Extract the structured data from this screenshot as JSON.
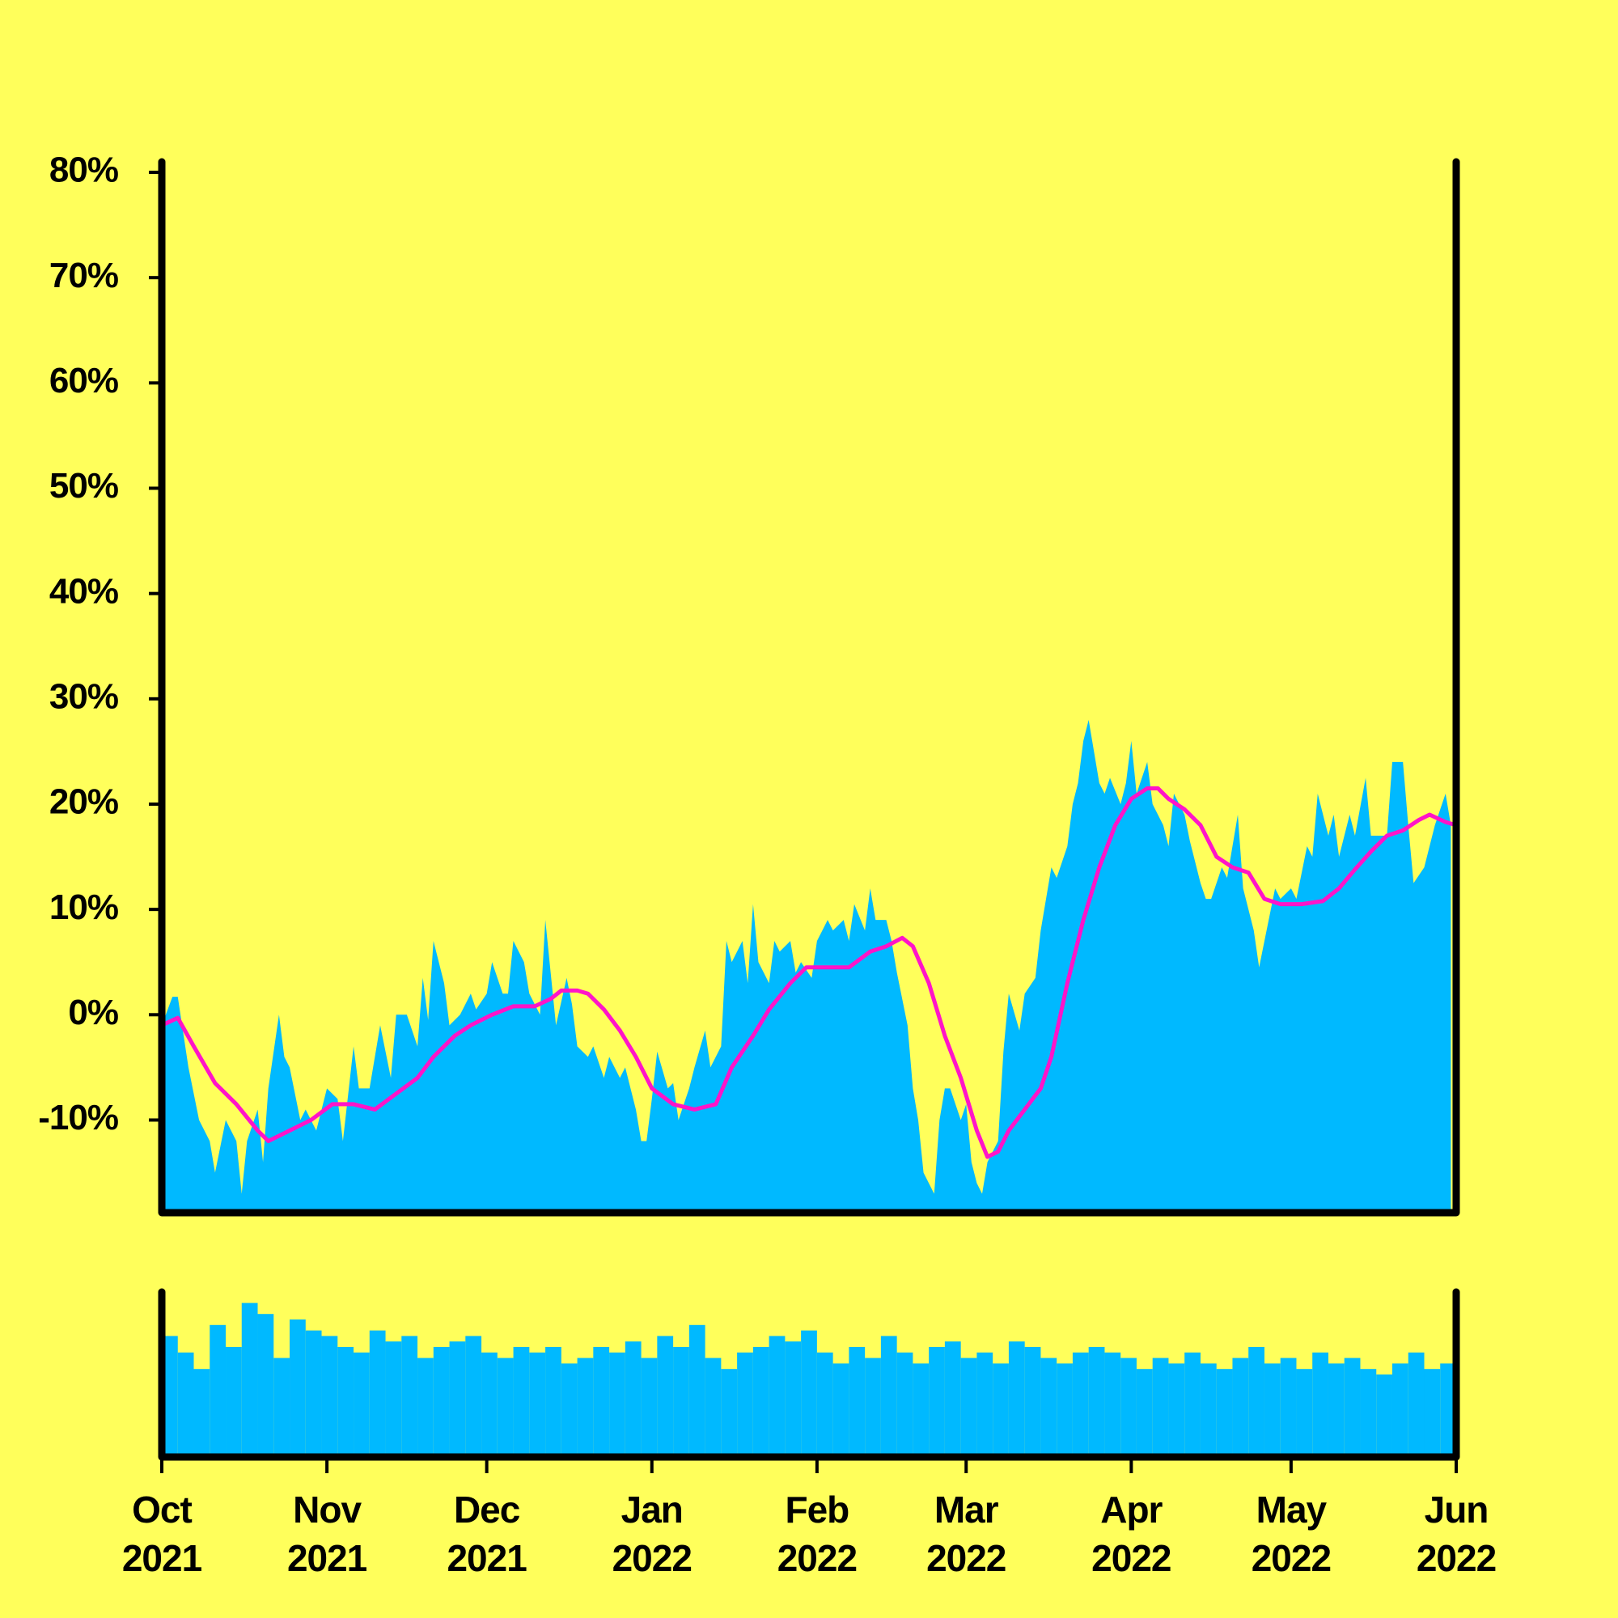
{
  "chart_data": [
    {
      "type": "area",
      "xlim": [
        0,
        243
      ],
      "ylim": [
        -18.8,
        81
      ],
      "yticks": [
        {
          "value": -10,
          "label": "-10%"
        },
        {
          "value": 0,
          "label": "0%"
        },
        {
          "value": 10,
          "label": "10%"
        },
        {
          "value": 20,
          "label": "20%"
        },
        {
          "value": 30,
          "label": "30%"
        },
        {
          "value": 40,
          "label": "40%"
        },
        {
          "value": 50,
          "label": "50%"
        },
        {
          "value": 60,
          "label": "60%"
        },
        {
          "value": 70,
          "label": "70%"
        },
        {
          "value": 80,
          "label": "80%"
        }
      ],
      "series": [
        {
          "type": "area",
          "color": "#00b9ff",
          "x": [
            0,
            2,
            3,
            5,
            7,
            9,
            10,
            12,
            14,
            15,
            16,
            18,
            19,
            20,
            22,
            23,
            24,
            26,
            27,
            29,
            31,
            33,
            34,
            36,
            37,
            39,
            40,
            41,
            43,
            44,
            46,
            48,
            49,
            50,
            51,
            53,
            54,
            56,
            58,
            59,
            61,
            62,
            64,
            65,
            66,
            68,
            69,
            71,
            72,
            73,
            74,
            76,
            77,
            78,
            80,
            81,
            83,
            84,
            86,
            87,
            89,
            90,
            91,
            92,
            93,
            95,
            96,
            97,
            99,
            100,
            102,
            103,
            105,
            106,
            107,
            109,
            110,
            111,
            112,
            114,
            115,
            116,
            118,
            119,
            120,
            122,
            123,
            125,
            126,
            128,
            129,
            130,
            132,
            133,
            134,
            136,
            137,
            138,
            140,
            141,
            142,
            143,
            145,
            146,
            147,
            148,
            150,
            151,
            152,
            153,
            154,
            155,
            157,
            158,
            159,
            161,
            162,
            164,
            165,
            167,
            168,
            170,
            171,
            172,
            173,
            174,
            176,
            177,
            178,
            180,
            181,
            182,
            183,
            185,
            186,
            188,
            189,
            190,
            192,
            193,
            195,
            196,
            197,
            199,
            200,
            202,
            203,
            205,
            206,
            207,
            209,
            210,
            212,
            213,
            215,
            216,
            217,
            219,
            220,
            221,
            223,
            224,
            226,
            227,
            229,
            230,
            231,
            233,
            234,
            235,
            237,
            239,
            241,
            242
          ],
          "values": [
            -1,
            1.7,
            1.7,
            -5,
            -10,
            -12,
            -15,
            -10,
            -12,
            -17,
            -12,
            -9,
            -14,
            -7,
            0,
            -4,
            -5,
            -10,
            -9,
            -11,
            -7,
            -8,
            -12,
            -3,
            -7,
            -7,
            -4,
            -1,
            -6,
            0,
            0,
            -3,
            3.5,
            -0.5,
            7,
            3,
            -1,
            0,
            2,
            0.5,
            2,
            5,
            2,
            2,
            7,
            5,
            2,
            0,
            9,
            4,
            -1,
            3.5,
            1,
            -3,
            -4,
            -3,
            -6,
            -4,
            -6,
            -5,
            -9,
            -12,
            -12,
            -8,
            -3.5,
            -7,
            -6.5,
            -10,
            -7,
            -5,
            -1.5,
            -5,
            -3,
            7,
            5,
            7,
            3,
            10.5,
            5,
            3,
            7,
            6,
            7,
            4,
            5,
            3.5,
            7,
            9,
            8,
            9,
            7,
            10.5,
            8,
            12,
            9,
            9,
            7,
            4,
            -1,
            -7,
            -10,
            -15,
            -17,
            -10,
            -7,
            -7,
            -10,
            -8.5,
            -14,
            -16,
            -17,
            -14,
            -12,
            -3.5,
            2,
            -1.5,
            2,
            3.5,
            8,
            14,
            13,
            16,
            20,
            22,
            26,
            28,
            22,
            21,
            22.5,
            20,
            22,
            26,
            21,
            24,
            20,
            18,
            16,
            21,
            19,
            16.5,
            12.5,
            11,
            11,
            14,
            13,
            19,
            12,
            8,
            4.5,
            7,
            12,
            11,
            12,
            11,
            16,
            15,
            21,
            17,
            19,
            15,
            19,
            17,
            22.5,
            17,
            17,
            17,
            24,
            24,
            18,
            12.5,
            14,
            18,
            21,
            18
          ]
        },
        {
          "type": "line",
          "color": "#ff14c8",
          "x": [
            0,
            3,
            6,
            10,
            14,
            18,
            20,
            24,
            28,
            32,
            36,
            40,
            44,
            48,
            51,
            55,
            58,
            62,
            66,
            70,
            73,
            75,
            78,
            80,
            83,
            86,
            89,
            92,
            96,
            100,
            104,
            107,
            111,
            114,
            118,
            121,
            125,
            129,
            133,
            136,
            139,
            141,
            144,
            147,
            150,
            153,
            155,
            157,
            159,
            162,
            165,
            167,
            170,
            173,
            176,
            179,
            182,
            185,
            187,
            189,
            192,
            195,
            198,
            201,
            204,
            207,
            210,
            214,
            218,
            221,
            224,
            227,
            230,
            233,
            236,
            238,
            241,
            243
          ],
          "values": [
            -1,
            -0.3,
            -3,
            -6.5,
            -8.5,
            -11,
            -12,
            -11,
            -10,
            -8.5,
            -8.5,
            -9,
            -7.5,
            -6,
            -4,
            -2,
            -1,
            0,
            0.8,
            0.8,
            1.5,
            2.3,
            2.3,
            2,
            0.5,
            -1.5,
            -4,
            -7,
            -8.5,
            -9,
            -8.5,
            -5,
            -2,
            0.5,
            3,
            4.5,
            4.5,
            4.5,
            6,
            6.5,
            7.3,
            6.5,
            3,
            -2,
            -6,
            -11,
            -13.5,
            -13,
            -11,
            -9,
            -7,
            -4,
            3,
            9,
            14,
            18,
            20.5,
            21.5,
            21.5,
            20.5,
            19.5,
            18,
            15,
            14,
            13.5,
            11,
            10.5,
            10.5,
            10.8,
            12,
            13.8,
            15.5,
            17,
            17.5,
            18.5,
            19,
            18.3,
            18
          ]
        }
      ]
    },
    {
      "type": "bar",
      "color": "#00b9ff",
      "xlim": [
        0,
        243
      ],
      "ylim": [
        0,
        150
      ],
      "xticks": [
        {
          "value": 0,
          "label": "Oct\n2021"
        },
        {
          "value": 31,
          "label": "Nov\n2021"
        },
        {
          "value": 61,
          "label": "Dec\n2021"
        },
        {
          "value": 92,
          "label": "Jan\n2022"
        },
        {
          "value": 123,
          "label": "Feb\n2022"
        },
        {
          "value": 151,
          "label": "Mar\n2022"
        },
        {
          "value": 182,
          "label": "Apr\n2022"
        },
        {
          "value": 212,
          "label": "May\n2022"
        },
        {
          "value": 243,
          "label": "Jun\n2022"
        }
      ],
      "x": [
        0,
        3,
        6,
        9,
        12,
        15,
        18,
        21,
        24,
        27,
        30,
        33,
        36,
        39,
        42,
        45,
        48,
        51,
        54,
        57,
        60,
        63,
        66,
        69,
        72,
        75,
        78,
        81,
        84,
        87,
        90,
        93,
        96,
        99,
        102,
        105,
        108,
        111,
        114,
        117,
        120,
        123,
        126,
        129,
        132,
        135,
        138,
        141,
        144,
        147,
        150,
        153,
        156,
        159,
        162,
        165,
        168,
        171,
        174,
        177,
        180,
        183,
        186,
        189,
        192,
        195,
        198,
        201,
        204,
        207,
        210,
        213,
        216,
        219,
        222,
        225,
        228,
        231,
        234,
        237,
        240
      ],
      "values": [
        110,
        95,
        80,
        120,
        100,
        140,
        130,
        90,
        125,
        115,
        110,
        100,
        95,
        115,
        105,
        110,
        90,
        100,
        105,
        110,
        95,
        90,
        100,
        95,
        100,
        85,
        90,
        100,
        95,
        105,
        90,
        110,
        100,
        120,
        90,
        80,
        95,
        100,
        110,
        105,
        115,
        95,
        85,
        100,
        90,
        110,
        95,
        85,
        100,
        105,
        90,
        95,
        85,
        105,
        100,
        90,
        85,
        95,
        100,
        95,
        90,
        80,
        90,
        85,
        95,
        85,
        80,
        90,
        100,
        85,
        90,
        80,
        95,
        85,
        90,
        80,
        75,
        85,
        95,
        80,
        85
      ]
    }
  ]
}
